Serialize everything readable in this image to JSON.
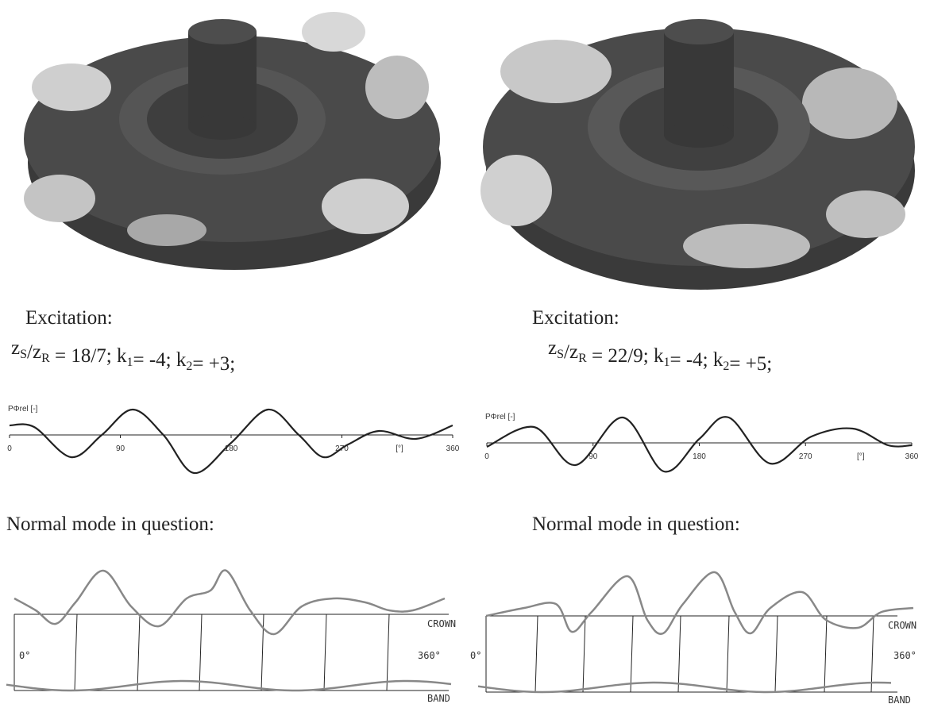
{
  "panels": [
    {
      "excitation": {
        "label": "Excitation:",
        "formula": [
          {
            "text": "z"
          },
          {
            "sub": "S"
          },
          {
            "text": "/z"
          },
          {
            "sub": "R"
          },
          {
            "text": " = 18/7; k"
          },
          {
            "sub": "1"
          },
          {
            "text": "= -4; k"
          },
          {
            "sub": "2"
          },
          {
            "text": "= +3;"
          }
        ]
      },
      "plot": {
        "y_label": "PΦrel [-]",
        "x_unit": "[°]",
        "xlim": [
          0,
          360
        ],
        "xticks": [
          0,
          90,
          180,
          270,
          360
        ]
      },
      "mode": {
        "title": "Normal mode in question:",
        "start_label": "0°",
        "end_label": "360°",
        "top_label": "CROWN",
        "bottom_label": "BAND"
      }
    },
    {
      "excitation": {
        "label": "Excitation:",
        "formula": [
          {
            "text": "z"
          },
          {
            "sub": "S"
          },
          {
            "text": "/z"
          },
          {
            "sub": "R"
          },
          {
            "text": " = 22/9; k"
          },
          {
            "sub": "1"
          },
          {
            "text": "= -4; k"
          },
          {
            "sub": "2"
          },
          {
            "text": "= +5;"
          }
        ]
      },
      "plot": {
        "y_label": "PΦrel [-]",
        "x_unit": "[°]",
        "xlim": [
          0,
          360
        ],
        "xticks": [
          0,
          90,
          180,
          270,
          360
        ]
      },
      "mode": {
        "title": "Normal mode in question:",
        "start_label": "0°",
        "end_label": "360°",
        "top_label": "CROWN",
        "bottom_label": "BAND"
      }
    }
  ]
}
